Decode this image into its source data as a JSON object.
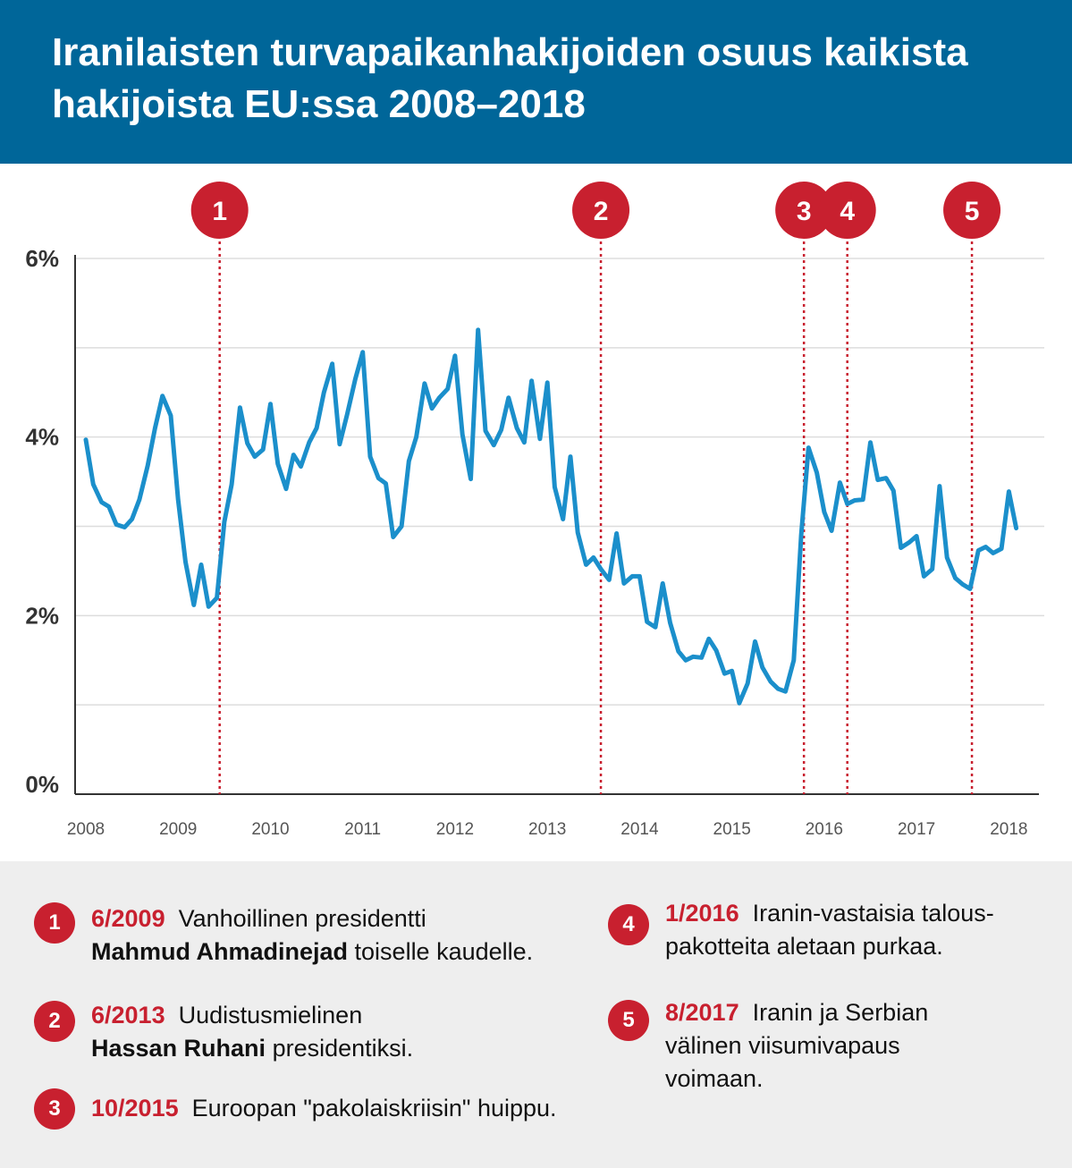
{
  "header": {
    "title": "Iranilaisten turvapaikanhakijoiden osuus kaikista hakijoista EU:ssa 2008–2018",
    "background": "#006699"
  },
  "colors": {
    "line": "#1b8fcb",
    "accent": "#c8202f",
    "notes_bg": "#eeeeee",
    "grid": "#dddddd"
  },
  "chart_data": {
    "type": "line",
    "title": "Iranilaisten turvapaikanhakijoiden osuus kaikista hakijoista EU:ssa 2008–2018",
    "xlabel": "",
    "ylabel": "",
    "x_range": [
      2008.0,
      2018.2
    ],
    "ylim": [
      0,
      6
    ],
    "y_ticks": [
      {
        "value": 0,
        "label": "0%"
      },
      {
        "value": 2,
        "label": "2%"
      },
      {
        "value": 4,
        "label": "4%"
      },
      {
        "value": 6,
        "label": "6%"
      }
    ],
    "y_gridlines": [
      1,
      2,
      3,
      4,
      5,
      6
    ],
    "x_ticks": [
      {
        "value": 2008,
        "label": "2008"
      },
      {
        "value": 2009,
        "label": "2009"
      },
      {
        "value": 2010,
        "label": "2010"
      },
      {
        "value": 2011,
        "label": "2011"
      },
      {
        "value": 2012,
        "label": "2012"
      },
      {
        "value": 2013,
        "label": "2013"
      },
      {
        "value": 2014,
        "label": "2014"
      },
      {
        "value": 2015,
        "label": "2015"
      },
      {
        "value": 2016,
        "label": "2016"
      },
      {
        "value": 2017,
        "label": "2017"
      },
      {
        "value": 2018,
        "label": "2018"
      }
    ],
    "grid": true,
    "legend": "none",
    "series": [
      {
        "values": [
          [
            2008.0,
            3.97
          ],
          [
            2008.08,
            3.47
          ],
          [
            2008.17,
            3.27
          ],
          [
            2008.25,
            3.22
          ],
          [
            2008.33,
            3.02
          ],
          [
            2008.42,
            2.99
          ],
          [
            2008.5,
            3.08
          ],
          [
            2008.58,
            3.3
          ],
          [
            2008.67,
            3.68
          ],
          [
            2008.75,
            4.1
          ],
          [
            2008.83,
            4.46
          ],
          [
            2008.92,
            4.24
          ],
          [
            2009.0,
            3.3
          ],
          [
            2009.08,
            2.6
          ],
          [
            2009.17,
            2.12
          ],
          [
            2009.25,
            2.57
          ],
          [
            2009.33,
            2.1
          ],
          [
            2009.42,
            2.2
          ],
          [
            2009.5,
            3.05
          ],
          [
            2009.58,
            3.47
          ],
          [
            2009.67,
            4.33
          ],
          [
            2009.75,
            3.93
          ],
          [
            2009.83,
            3.78
          ],
          [
            2009.92,
            3.86
          ],
          [
            2010.0,
            4.37
          ],
          [
            2010.08,
            3.7
          ],
          [
            2010.17,
            3.42
          ],
          [
            2010.25,
            3.8
          ],
          [
            2010.33,
            3.67
          ],
          [
            2010.42,
            3.94
          ],
          [
            2010.5,
            4.1
          ],
          [
            2010.58,
            4.5
          ],
          [
            2010.67,
            4.82
          ],
          [
            2010.75,
            3.92
          ],
          [
            2010.83,
            4.25
          ],
          [
            2010.92,
            4.65
          ],
          [
            2011.0,
            4.95
          ],
          [
            2011.08,
            3.78
          ],
          [
            2011.17,
            3.54
          ],
          [
            2011.25,
            3.48
          ],
          [
            2011.33,
            2.88
          ],
          [
            2011.42,
            3.0
          ],
          [
            2011.5,
            3.73
          ],
          [
            2011.58,
            4.0
          ],
          [
            2011.67,
            4.6
          ],
          [
            2011.75,
            4.32
          ],
          [
            2011.83,
            4.44
          ],
          [
            2011.92,
            4.54
          ],
          [
            2012.0,
            4.91
          ],
          [
            2012.08,
            4.03
          ],
          [
            2012.17,
            3.53
          ],
          [
            2012.25,
            5.2
          ],
          [
            2012.33,
            4.07
          ],
          [
            2012.42,
            3.91
          ],
          [
            2012.5,
            4.08
          ],
          [
            2012.58,
            4.44
          ],
          [
            2012.67,
            4.1
          ],
          [
            2012.75,
            3.94
          ],
          [
            2012.83,
            4.63
          ],
          [
            2012.92,
            3.98
          ],
          [
            2013.0,
            4.61
          ],
          [
            2013.08,
            3.44
          ],
          [
            2013.17,
            3.08
          ],
          [
            2013.25,
            3.78
          ],
          [
            2013.33,
            2.93
          ],
          [
            2013.42,
            2.57
          ],
          [
            2013.5,
            2.65
          ],
          [
            2013.58,
            2.52
          ],
          [
            2013.67,
            2.4
          ],
          [
            2013.75,
            2.92
          ],
          [
            2013.83,
            2.36
          ],
          [
            2013.92,
            2.44
          ],
          [
            2014.0,
            2.44
          ],
          [
            2014.08,
            1.93
          ],
          [
            2014.17,
            1.87
          ],
          [
            2014.25,
            2.36
          ],
          [
            2014.33,
            1.92
          ],
          [
            2014.42,
            1.6
          ],
          [
            2014.5,
            1.5
          ],
          [
            2014.58,
            1.54
          ],
          [
            2014.67,
            1.53
          ],
          [
            2014.75,
            1.74
          ],
          [
            2014.83,
            1.61
          ],
          [
            2014.92,
            1.35
          ],
          [
            2015.0,
            1.38
          ],
          [
            2015.08,
            1.02
          ],
          [
            2015.17,
            1.24
          ],
          [
            2015.25,
            1.71
          ],
          [
            2015.33,
            1.42
          ],
          [
            2015.42,
            1.26
          ],
          [
            2015.5,
            1.18
          ],
          [
            2015.58,
            1.15
          ],
          [
            2015.67,
            1.5
          ],
          [
            2015.75,
            2.9
          ],
          [
            2015.83,
            3.88
          ],
          [
            2015.92,
            3.6
          ],
          [
            2016.0,
            3.16
          ],
          [
            2016.08,
            2.95
          ],
          [
            2016.17,
            3.49
          ],
          [
            2016.25,
            3.25
          ],
          [
            2016.33,
            3.29
          ],
          [
            2016.42,
            3.3
          ],
          [
            2016.5,
            3.94
          ],
          [
            2016.58,
            3.52
          ],
          [
            2016.67,
            3.54
          ],
          [
            2016.75,
            3.4
          ],
          [
            2016.83,
            2.76
          ],
          [
            2016.92,
            2.82
          ],
          [
            2017.0,
            2.89
          ],
          [
            2017.08,
            2.44
          ],
          [
            2017.17,
            2.52
          ],
          [
            2017.25,
            3.45
          ],
          [
            2017.33,
            2.65
          ],
          [
            2017.42,
            2.42
          ],
          [
            2017.5,
            2.35
          ],
          [
            2017.58,
            2.3
          ],
          [
            2017.67,
            2.73
          ],
          [
            2017.75,
            2.77
          ],
          [
            2017.83,
            2.7
          ],
          [
            2017.92,
            2.75
          ],
          [
            2018.0,
            3.39
          ],
          [
            2018.08,
            2.98
          ]
        ]
      }
    ],
    "markers": [
      {
        "number": "1",
        "x": 2009.45
      },
      {
        "number": "2",
        "x": 2013.58
      },
      {
        "number": "3",
        "x": 2015.78
      },
      {
        "number": "4",
        "x": 2016.25
      },
      {
        "number": "5",
        "x": 2017.6
      }
    ]
  },
  "notes": [
    {
      "number": "1",
      "date": "6/2009",
      "lines": [
        "Vanhoillinen presidentti"
      ],
      "bold": "Mahmud Ahmadinejad",
      "after_bold": " toiselle kaudelle."
    },
    {
      "number": "2",
      "date": "6/2013",
      "lines": [
        "Uudistusmielinen"
      ],
      "bold": "Hassan Ruhani",
      "after_bold": " presidentiksi."
    },
    {
      "number": "3",
      "date": "10/2015",
      "lines": [
        "Euroopan \"pakolaiskriisin\" huippu."
      ],
      "bold": "",
      "after_bold": ""
    },
    {
      "number": "4",
      "date": "1/2016",
      "lines": [
        "Iranin-vastaisia talous-",
        "pakotteita aletaan purkaa."
      ],
      "bold": "",
      "after_bold": ""
    },
    {
      "number": "5",
      "date": "8/2017",
      "lines": [
        "Iranin ja Serbian",
        "välinen viisumivapaus",
        "voimaan."
      ],
      "bold": "",
      "after_bold": ""
    }
  ]
}
